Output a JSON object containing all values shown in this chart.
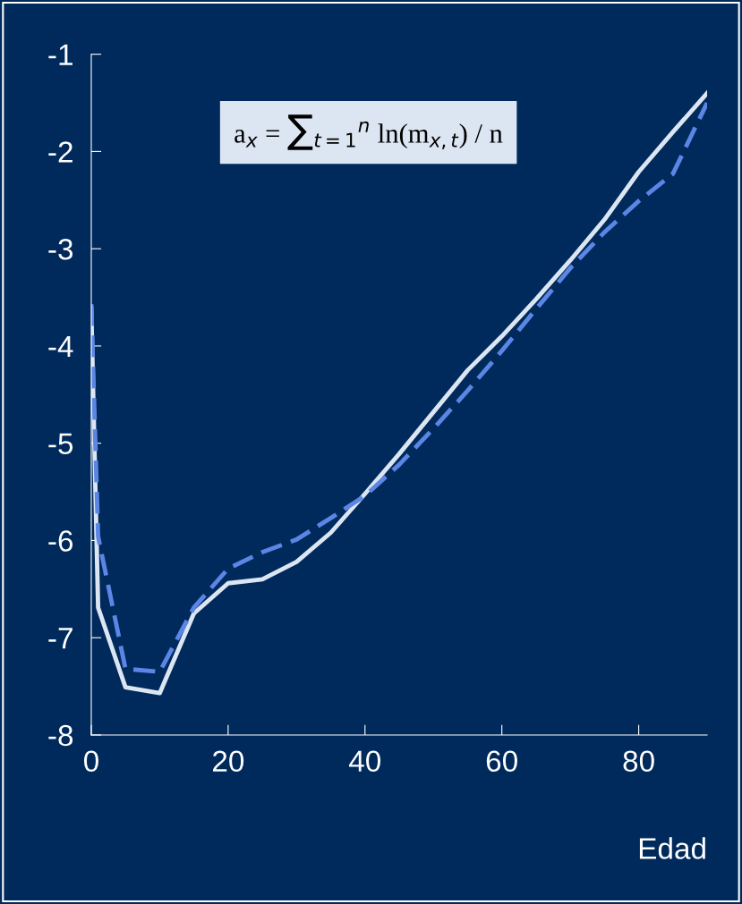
{
  "chart_data": {
    "type": "line",
    "xlabel": "Edad",
    "x": [
      0,
      1,
      5,
      10,
      15,
      20,
      25,
      30,
      35,
      40,
      45,
      50,
      55,
      60,
      65,
      70,
      75,
      80,
      85,
      90
    ],
    "series": [
      {
        "color": "#dce6f2",
        "line_style": "solid",
        "values": [
          -3.61,
          -6.69,
          -7.51,
          -7.57,
          -6.75,
          -6.44,
          -6.4,
          -6.22,
          -5.92,
          -5.52,
          -5.11,
          -4.68,
          -4.25,
          -3.9,
          -3.52,
          -3.12,
          -2.7,
          -2.21,
          -1.8,
          -1.4
        ]
      },
      {
        "color": "#5b86e5",
        "line_style": "dashed",
        "values": [
          -3.57,
          -5.96,
          -7.32,
          -7.35,
          -6.69,
          -6.29,
          -6.12,
          -5.99,
          -5.77,
          -5.54,
          -5.22,
          -4.85,
          -4.46,
          -4.05,
          -3.62,
          -3.2,
          -2.83,
          -2.51,
          -2.23,
          -1.5
        ]
      }
    ],
    "xlim": [
      0,
      90
    ],
    "xticks": [
      0,
      20,
      40,
      60,
      80
    ],
    "ylim": [
      -8,
      -1
    ],
    "yticks": [
      -8,
      -7,
      -6,
      -5,
      -4,
      -3,
      -2,
      -1
    ],
    "grid": false,
    "legend": false,
    "marker": "none",
    "annotations": [
      "a$_{x}$ = ∑$_{t=1}$$^{n}$ ln(m$_{x,t}$) / n"
    ]
  }
}
